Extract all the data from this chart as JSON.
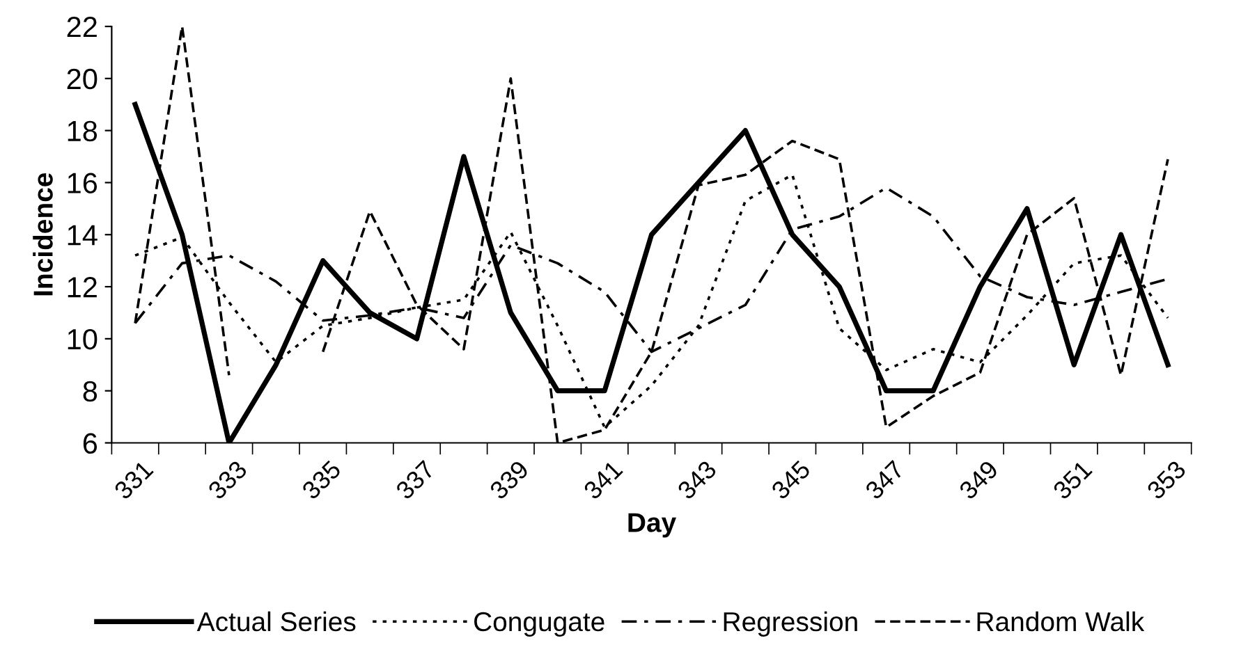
{
  "chart_data": {
    "type": "line",
    "xlabel": "Day",
    "ylabel": "Incidence",
    "categories": [
      "331",
      null,
      "333",
      null,
      "335",
      null,
      "337",
      null,
      "339",
      null,
      "341",
      null,
      "343",
      null,
      "345",
      null,
      "347",
      null,
      "349",
      null,
      "351",
      null,
      "353"
    ],
    "series": [
      {
        "name": "Actual Series",
        "color": "#000000",
        "line_style": "solid",
        "values": [
          19,
          14,
          6,
          9,
          13,
          11,
          10,
          17,
          11,
          8,
          8,
          14,
          16,
          18,
          14,
          12,
          8,
          8,
          12,
          15,
          9,
          14,
          9
        ]
      },
      {
        "name": "Congugate",
        "color": "#000000",
        "line_style": "dotted",
        "values": [
          13.2,
          13.9,
          11.4,
          9.1,
          10.5,
          10.8,
          11.2,
          11.5,
          14.1,
          10.5,
          6.6,
          8.2,
          10.5,
          15.3,
          16.3,
          10.4,
          8.8,
          9.6,
          9.1,
          10.9,
          12.9,
          13.2,
          10.8
        ]
      },
      {
        "name": "Regression",
        "color": "#000000",
        "line_style": "dashdot",
        "values": [
          10.6,
          12.9,
          13.2,
          12.2,
          10.7,
          10.9,
          11.2,
          10.8,
          13.6,
          12.9,
          11.8,
          9.5,
          10.4,
          11.3,
          14.2,
          14.7,
          15.8,
          14.7,
          12.4,
          11.6,
          11.3,
          11.8,
          12.3
        ]
      },
      {
        "name": "Random Walk",
        "color": "#000000",
        "line_style": "dashed",
        "values": [
          10.6,
          22,
          8.6,
          null,
          9.5,
          14.9,
          11.3,
          9.6,
          20,
          6,
          6.5,
          9.5,
          15.9,
          16.3,
          17.6,
          16.9,
          6.6,
          7.8,
          8.7,
          14,
          15.4,
          8.6,
          16.9
        ]
      }
    ],
    "ylim": [
      6,
      22
    ],
    "yticks": [
      6,
      8,
      10,
      12,
      14,
      16,
      18,
      20,
      22
    ],
    "grid": false,
    "legend": "bottom",
    "marker": "none"
  }
}
